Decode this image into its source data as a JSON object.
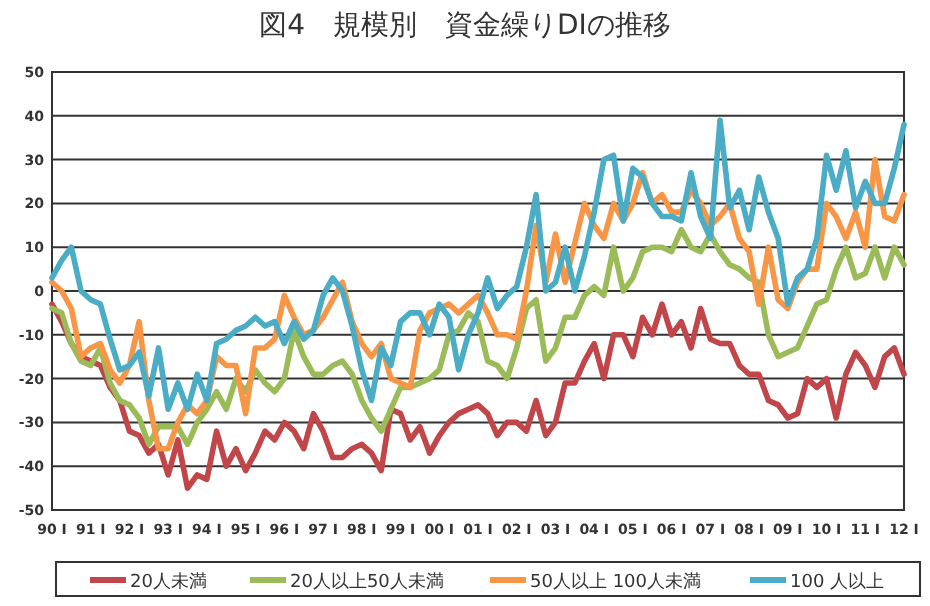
{
  "chart_data": {
    "type": "line",
    "title": "図4　規模別　資金繰りDIの推移",
    "categories": [
      "90 Ⅰ",
      null,
      null,
      null,
      "91 Ⅰ",
      null,
      null,
      null,
      "92 Ⅰ",
      null,
      null,
      null,
      "93 Ⅰ",
      null,
      null,
      null,
      "94 Ⅰ",
      null,
      null,
      null,
      "95 Ⅰ",
      null,
      null,
      null,
      "96 Ⅰ",
      null,
      null,
      null,
      "97 Ⅰ",
      null,
      null,
      null,
      "98 Ⅰ",
      null,
      null,
      null,
      "99 Ⅰ",
      null,
      null,
      null,
      "00 Ⅰ",
      null,
      null,
      null,
      "01 Ⅰ",
      null,
      null,
      null,
      "02 Ⅰ",
      null,
      null,
      null,
      "03 Ⅰ",
      null,
      null,
      null,
      "04 Ⅰ",
      null,
      null,
      null,
      "05 Ⅰ",
      null,
      null,
      null,
      "06 Ⅰ",
      null,
      null,
      null,
      "07 Ⅰ",
      null,
      null,
      null,
      "08 Ⅰ",
      null,
      null,
      null,
      "09 Ⅰ",
      null,
      null,
      null,
      "10 Ⅰ",
      null,
      null,
      null,
      "11 Ⅰ",
      null,
      null,
      null,
      "12 Ⅰ"
    ],
    "series": [
      {
        "name": "20人未満",
        "color": "#c0464a",
        "values": [
          -3,
          -7,
          -12,
          -15,
          -16,
          -17,
          -22,
          -25,
          -32,
          -33,
          -37,
          -35,
          -42,
          -34,
          -45,
          -42,
          -43,
          -32,
          -40,
          -36,
          -41,
          -37,
          -32,
          -34,
          -30,
          -32,
          -36,
          -28,
          -32,
          -38,
          -38,
          -36,
          -35,
          -37,
          -41,
          -27,
          -28,
          -34,
          -31,
          -37,
          -33,
          -30,
          -28,
          -27,
          -26,
          -28,
          -33,
          -30,
          -30,
          -32,
          -25,
          -33,
          -30,
          -21,
          -21,
          -16,
          -12,
          -20,
          -10,
          -10,
          -15,
          -6,
          -10,
          -3,
          -10,
          -7,
          -13,
          -4,
          -11,
          -12,
          -12,
          -17,
          -19,
          -19,
          -25,
          -26,
          -29,
          -28,
          -20,
          -22,
          -20,
          -29,
          -19,
          -14,
          -17,
          -22,
          -15,
          -13,
          -19
        ]
      },
      {
        "name": "20人以上50人未満",
        "color": "#9bbb59",
        "values": [
          -4,
          -5,
          -12,
          -16,
          -17,
          -13,
          -21,
          -25,
          -26,
          -29,
          -35,
          -31,
          -31,
          -31,
          -35,
          -30,
          -27,
          -23,
          -27,
          -20,
          -23,
          -18,
          -21,
          -23,
          -20,
          -9,
          -15,
          -19,
          -19,
          -17,
          -16,
          -19,
          -25,
          -29,
          -32,
          -27,
          -22,
          -22,
          -21,
          -20,
          -18,
          -10,
          -9,
          -5,
          -7,
          -16,
          -17,
          -20,
          -13,
          -4,
          -2,
          -16,
          -13,
          -6,
          -6,
          -1,
          1,
          -1,
          10,
          0,
          3,
          9,
          10,
          10,
          9,
          14,
          10,
          9,
          13,
          9,
          6,
          5,
          3,
          2,
          -10,
          -15,
          -14,
          -13,
          -8,
          -3,
          -2,
          5,
          10,
          3,
          4,
          10,
          3,
          10,
          6
        ]
      },
      {
        "name": "50人以上 100人未満",
        "color": "#f79646",
        "values": [
          2,
          0,
          -4,
          -15,
          -13,
          -12,
          -18,
          -21,
          -17,
          -7,
          -25,
          -36,
          -36,
          -30,
          -26,
          -28,
          -25,
          -15,
          -17,
          -17,
          -28,
          -13,
          -13,
          -11,
          -1,
          -6,
          -10,
          -9,
          -6,
          -2,
          2,
          -7,
          -12,
          -15,
          -12,
          -20,
          -21,
          -22,
          -9,
          -5,
          -4,
          -3,
          -5,
          -3,
          -1,
          -5,
          -10,
          -10,
          -11,
          0,
          15,
          2,
          13,
          2,
          11,
          20,
          15,
          12,
          20,
          16,
          20,
          27,
          20,
          22,
          18,
          18,
          23,
          20,
          15,
          17,
          20,
          12,
          9,
          -3,
          10,
          -2,
          -4,
          2,
          5,
          5,
          20,
          17,
          12,
          18,
          10,
          30,
          17,
          16,
          22
        ]
      },
      {
        "name": "100 人以上",
        "color": "#4bacc6",
        "values": [
          3,
          7,
          10,
          0,
          -2,
          -3,
          -11,
          -18,
          -17,
          -14,
          -24,
          -13,
          -27,
          -21,
          -27,
          -19,
          -25,
          -12,
          -11,
          -9,
          -8,
          -6,
          -8,
          -7,
          -12,
          -7,
          -11,
          -9,
          -1,
          3,
          0,
          -8,
          -18,
          -25,
          -13,
          -17,
          -7,
          -5,
          -5,
          -10,
          -3,
          -6,
          -18,
          -10,
          -5,
          3,
          -4,
          -1,
          1,
          10,
          22,
          0,
          2,
          10,
          0,
          8,
          18,
          30,
          31,
          16,
          28,
          26,
          20,
          17,
          17,
          16,
          27,
          17,
          12,
          39,
          19,
          23,
          14,
          26,
          18,
          12,
          -3,
          3,
          5,
          12,
          31,
          23,
          32,
          19,
          25,
          20,
          20,
          28,
          38
        ]
      }
    ],
    "ylim": [
      -50,
      50
    ],
    "yticks": [
      -50,
      -40,
      -30,
      -20,
      -10,
      0,
      10,
      20,
      30,
      40,
      50
    ],
    "grid": "y",
    "legend": "bottom"
  }
}
